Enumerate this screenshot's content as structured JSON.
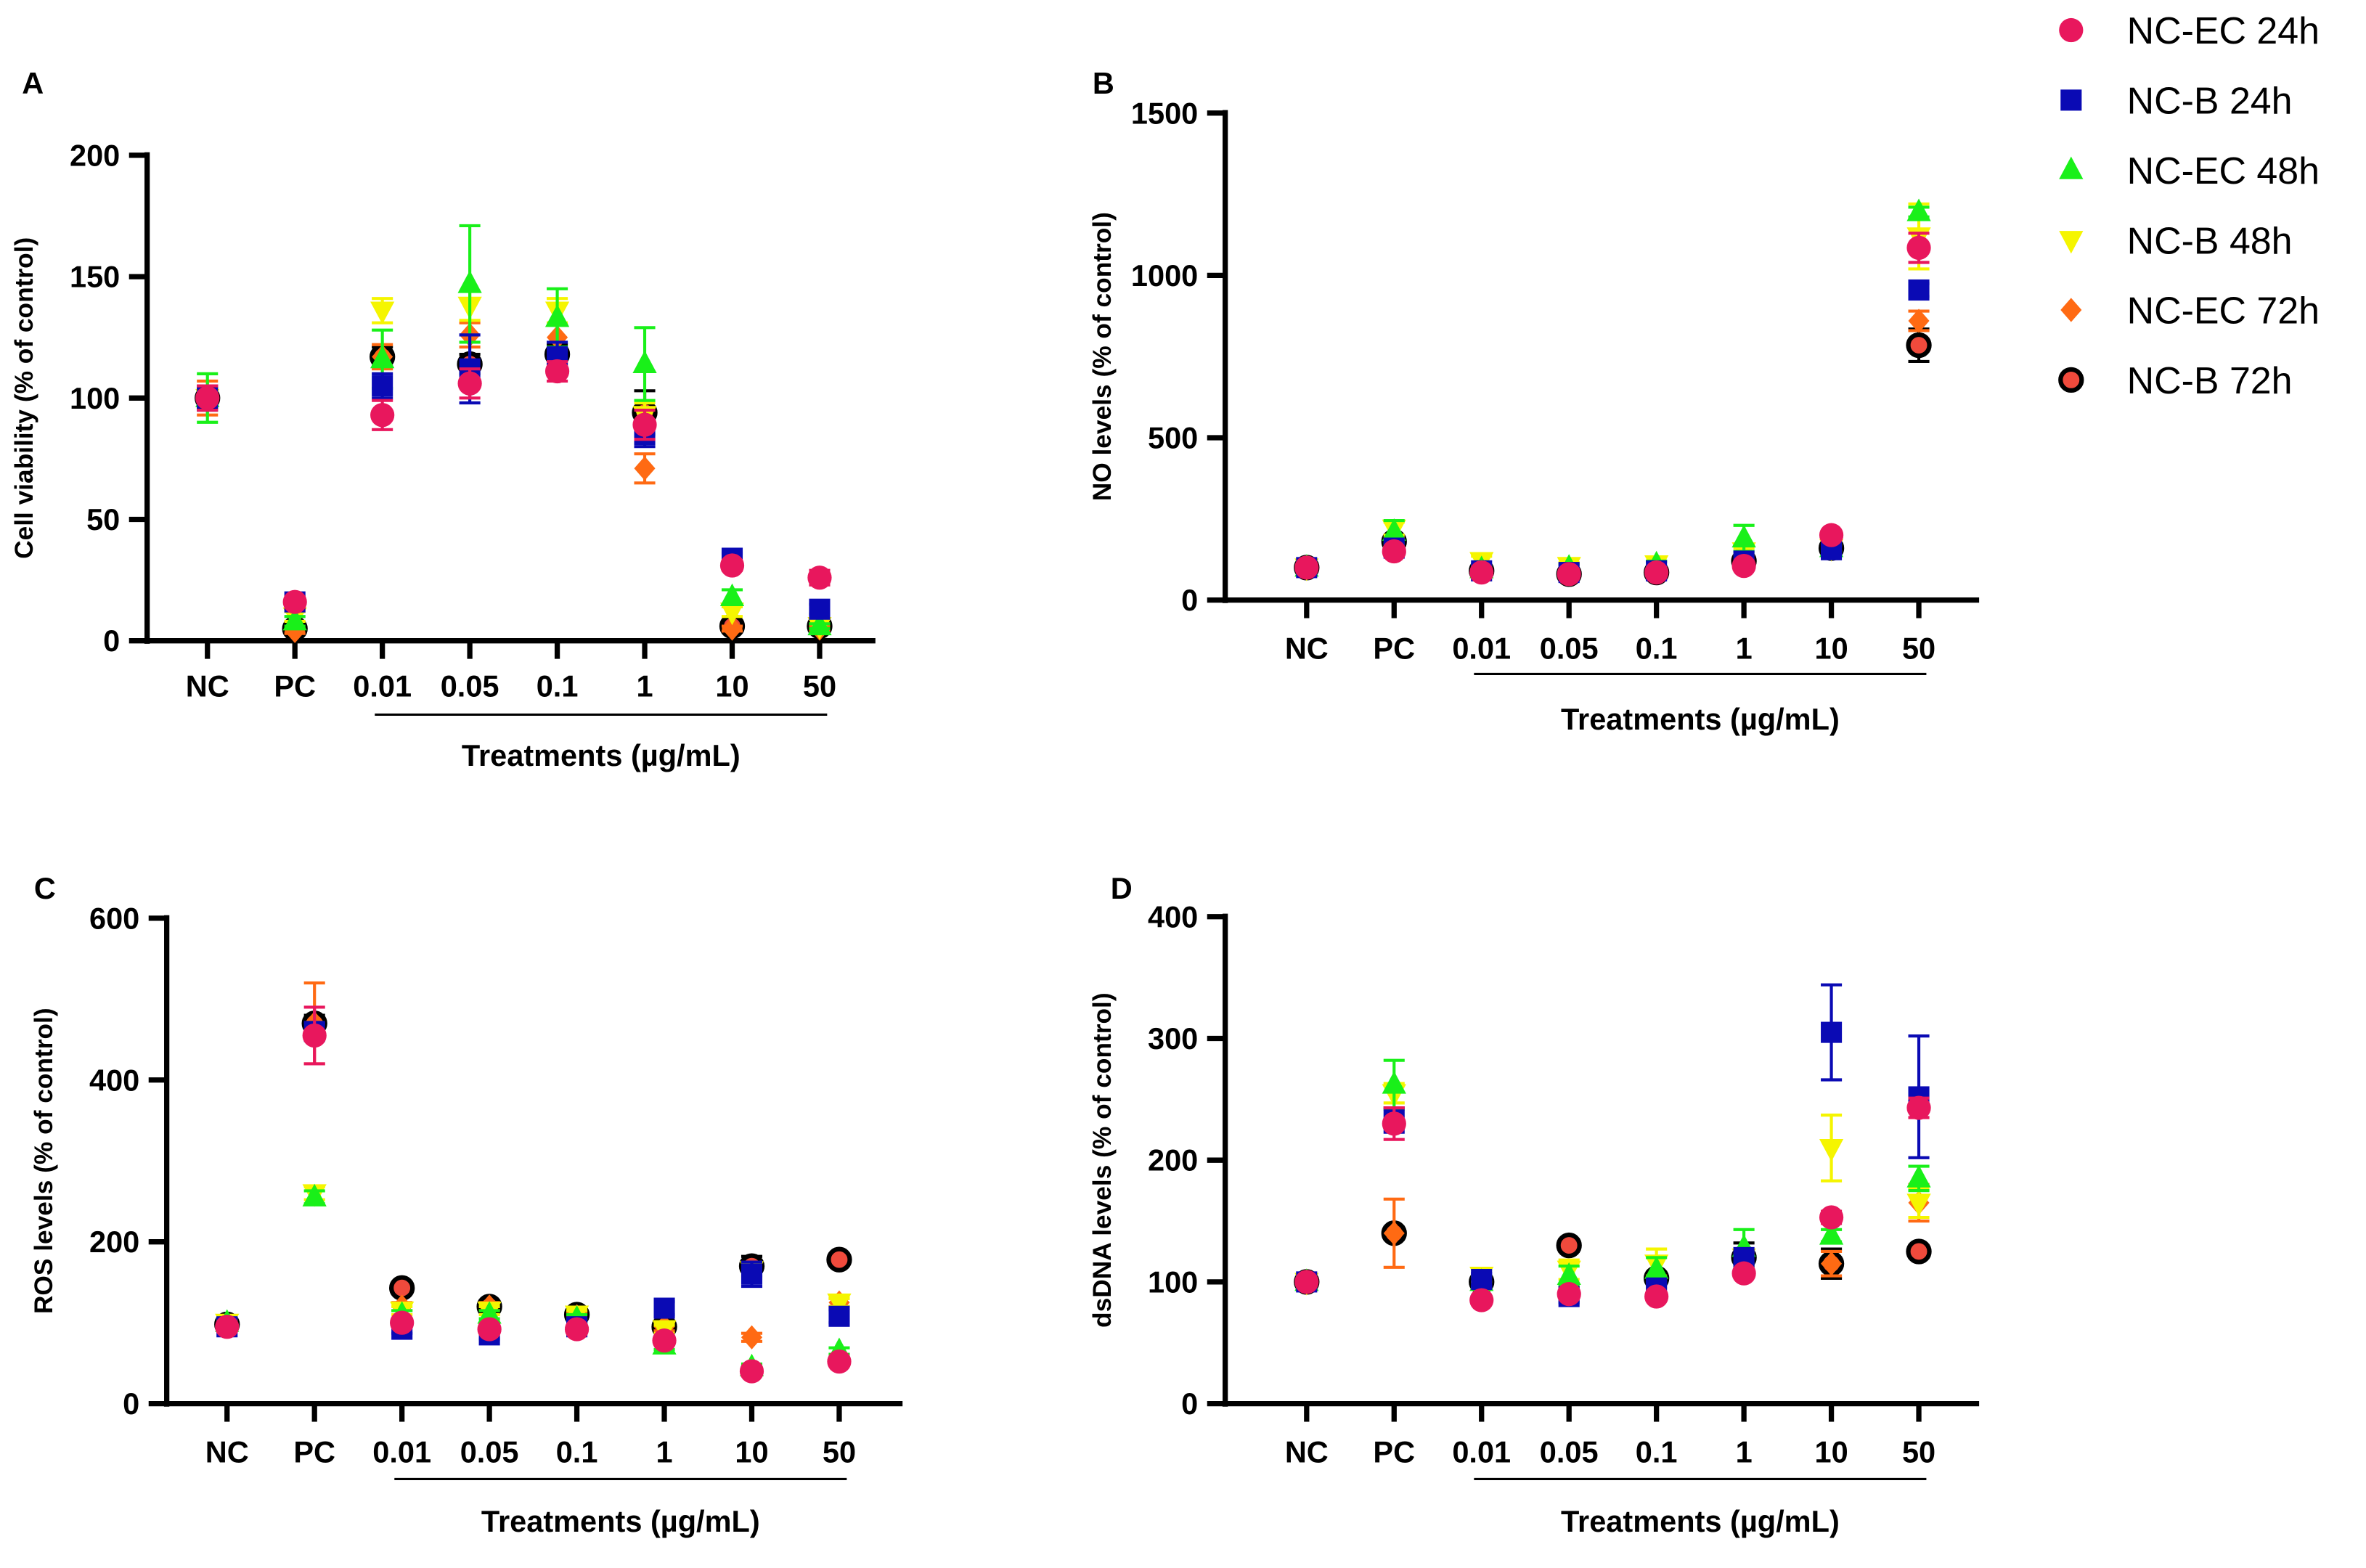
{
  "chart_data": {
    "type": "scatter",
    "categories": [
      "NC",
      "PC",
      "0.01",
      "0.05",
      "0.1",
      "1",
      "10",
      "50"
    ],
    "xlabel": "Treatments (µg/mL)",
    "legend_position": "top-right",
    "legend": [
      {
        "name": "NC-EC 24h",
        "marker": "circle",
        "color": "#e8175d"
      },
      {
        "name": "NC-B 24h",
        "marker": "square",
        "color": "#0a0ab4"
      },
      {
        "name": "NC-EC 48h",
        "marker": "triangle-up",
        "color": "#19f019"
      },
      {
        "name": "NC-B 48h",
        "marker": "triangle-down",
        "color": "#f5f500"
      },
      {
        "name": "NC-EC 72h",
        "marker": "diamond",
        "color": "#ff6a13"
      },
      {
        "name": "NC-B 72h",
        "marker": "circle-outlined",
        "color": "#f04a3c"
      }
    ],
    "panels": [
      {
        "label": "A",
        "ylabel": "Cell viability (% of control)",
        "ylim": [
          0,
          200
        ],
        "yticks": [
          0,
          50,
          100,
          150,
          200
        ],
        "series": [
          {
            "name": "NC-EC 24h",
            "values": [
              100,
              16,
              93,
              106,
              111,
              89,
              31,
              26
            ],
            "err": [
              5,
              2,
              6,
              6,
              4,
              6,
              2,
              3
            ]
          },
          {
            "name": "NC-B 24h",
            "values": [
              100,
              16,
              105,
              112,
              117,
              85,
              34,
              13
            ],
            "err": [
              5,
              2,
              5,
              14,
              6,
              5,
              2,
              2
            ]
          },
          {
            "name": "NC-EC 48h",
            "values": [
              100,
              8,
              116,
              147,
              133,
              114,
              18,
              6
            ],
            "err": [
              10,
              2,
              12,
              24,
              12,
              15,
              3,
              1
            ]
          },
          {
            "name": "NC-B 48h",
            "values": [
              100,
              10,
              136,
              138,
              136,
              93,
              12,
              6
            ],
            "err": [
              5,
              2,
              5,
              6,
              5,
              5,
              2,
              1
            ]
          },
          {
            "name": "NC-EC 72h",
            "values": [
              100,
              4,
              117,
              126,
              125,
              71,
              5,
              5
            ],
            "err": [
              7,
              1,
              5,
              5,
              5,
              6,
              1,
              1
            ]
          },
          {
            "name": "NC-B 72h",
            "values": [
              100,
              5,
              117,
              114,
              118,
              94,
              6,
              6
            ],
            "err": [
              4,
              1,
              4,
              4,
              4,
              9,
              1,
              1
            ]
          }
        ]
      },
      {
        "label": "B",
        "ylabel": "NO levels (% of control)",
        "ylim": [
          0,
          1500
        ],
        "yticks": [
          0,
          500,
          1000,
          1500
        ],
        "series": [
          {
            "name": "NC-EC 24h",
            "values": [
              100,
              150,
              85,
              80,
              85,
              105,
              200,
              1085
            ],
            "err": [
              5,
              10,
              5,
              5,
              5,
              5,
              10,
              45
            ]
          },
          {
            "name": "NC-B 24h",
            "values": [
              100,
              160,
              90,
              85,
              90,
              120,
              155,
              955
            ],
            "err": [
              5,
              10,
              5,
              5,
              5,
              5,
              10,
              20
            ]
          },
          {
            "name": "NC-EC 48h",
            "values": [
              100,
              210,
              95,
              100,
              110,
              190,
              160,
              1195
            ],
            "err": [
              5,
              35,
              8,
              10,
              10,
              40,
              10,
              15
            ]
          },
          {
            "name": "NC-B 48h",
            "values": [
              100,
              220,
              120,
              105,
              110,
              150,
              160,
              1120
            ],
            "err": [
              5,
              20,
              15,
              10,
              10,
              10,
              10,
              100
            ]
          },
          {
            "name": "NC-EC 72h",
            "values": [
              100,
              180,
              90,
              85,
              85,
              120,
              160,
              860
            ],
            "err": [
              5,
              10,
              5,
              5,
              5,
              5,
              10,
              30
            ]
          },
          {
            "name": "NC-B 72h",
            "values": [
              100,
              180,
              90,
              80,
              85,
              120,
              160,
              785
            ],
            "err": [
              5,
              10,
              5,
              5,
              5,
              5,
              10,
              50
            ]
          }
        ]
      },
      {
        "label": "C",
        "ylabel": "ROS levels (% of control)",
        "ylim": [
          0,
          600
        ],
        "yticks": [
          0,
          200,
          400,
          600
        ],
        "series": [
          {
            "name": "NC-EC 24h",
            "values": [
              95,
              455,
              100,
              92,
              92,
              78,
              40,
              52
            ],
            "err": [
              4,
              35,
              5,
              5,
              5,
              5,
              4,
              4
            ]
          },
          {
            "name": "NC-B 24h",
            "values": [
              95,
              460,
              92,
              85,
              95,
              118,
              160,
              108
            ],
            "err": [
              4,
              10,
              5,
              5,
              5,
              8,
              15,
              8
            ]
          },
          {
            "name": "NC-EC 48h",
            "values": [
              100,
              255,
              110,
              110,
              105,
              72,
              45,
              65
            ],
            "err": [
              4,
              8,
              5,
              5,
              5,
              5,
              4,
              4
            ]
          },
          {
            "name": "NC-B 48h",
            "values": [
              100,
              260,
              115,
              115,
              110,
              92,
              165,
              125
            ],
            "err": [
              4,
              8,
              5,
              5,
              5,
              5,
              10,
              5
            ]
          },
          {
            "name": "NC-EC 72h",
            "values": [
              98,
              470,
              120,
              120,
              108,
              95,
              82,
              125
            ],
            "err": [
              4,
              50,
              5,
              5,
              5,
              5,
              5,
              5
            ]
          },
          {
            "name": "NC-B 72h",
            "values": [
              98,
              470,
              143,
              120,
              110,
              95,
              170,
              178
            ],
            "err": [
              4,
              10,
              5,
              5,
              5,
              5,
              12,
              5
            ]
          }
        ]
      },
      {
        "label": "D",
        "ylabel": "dsDNA levels (% of control)",
        "ylim": [
          0,
          400
        ],
        "yticks": [
          0,
          100,
          200,
          300,
          400
        ],
        "series": [
          {
            "name": "NC-EC 24h",
            "values": [
              100,
              230,
              85,
              90,
              88,
              107,
              153,
              243
            ],
            "err": [
              3,
              13,
              3,
              3,
              3,
              3,
              5,
              8
            ]
          },
          {
            "name": "NC-B 24h",
            "values": [
              100,
              233,
              102,
              88,
              95,
              120,
              305,
              252
            ],
            "err": [
              3,
              10,
              5,
              5,
              5,
              5,
              39,
              50
            ]
          },
          {
            "name": "NC-EC 48h",
            "values": [
              100,
              262,
              100,
              105,
              110,
              128,
              138,
              185
            ],
            "err": [
              3,
              20,
              5,
              8,
              10,
              15,
              5,
              10
            ]
          },
          {
            "name": "NC-B 48h",
            "values": [
              100,
              255,
              105,
              110,
              115,
              120,
              210,
              165
            ],
            "err": [
              3,
              8,
              5,
              8,
              12,
              5,
              27,
              12
            ]
          },
          {
            "name": "NC-EC 72h",
            "values": [
              100,
              140,
              100,
              90,
              100,
              118,
              115,
              165
            ],
            "err": [
              3,
              28,
              5,
              5,
              5,
              5,
              10,
              15
            ]
          },
          {
            "name": "NC-B 72h",
            "values": [
              100,
              140,
              100,
              130,
              103,
              120,
              115,
              125
            ],
            "err": [
              3,
              5,
              5,
              5,
              5,
              12,
              12,
              5
            ]
          }
        ]
      }
    ]
  }
}
